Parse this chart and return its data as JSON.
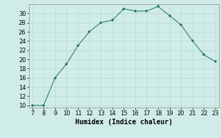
{
  "x": [
    7,
    8,
    9,
    10,
    11,
    12,
    13,
    14,
    15,
    16,
    17,
    18,
    19,
    20,
    21,
    22,
    23
  ],
  "y": [
    10,
    10,
    16,
    19,
    23,
    26,
    28,
    28.5,
    31,
    30.5,
    30.5,
    31.5,
    29.5,
    27.5,
    24,
    21,
    19.5
  ],
  "xlabel": "Humidex (Indice chaleur)",
  "xlim": [
    7,
    23
  ],
  "ylim": [
    10,
    31.5
  ],
  "yticks": [
    10,
    12,
    14,
    16,
    18,
    20,
    22,
    24,
    26,
    28,
    30
  ],
  "xticks": [
    7,
    8,
    9,
    10,
    11,
    12,
    13,
    14,
    15,
    16,
    17,
    18,
    19,
    20,
    21,
    22,
    23
  ],
  "line_color": "#2d7a6a",
  "marker_color": "#2d7a6a",
  "bg_color": "#d0ece8",
  "grid_color": "#b8d8d2",
  "xlabel_fontsize": 7,
  "tick_fontsize": 6
}
